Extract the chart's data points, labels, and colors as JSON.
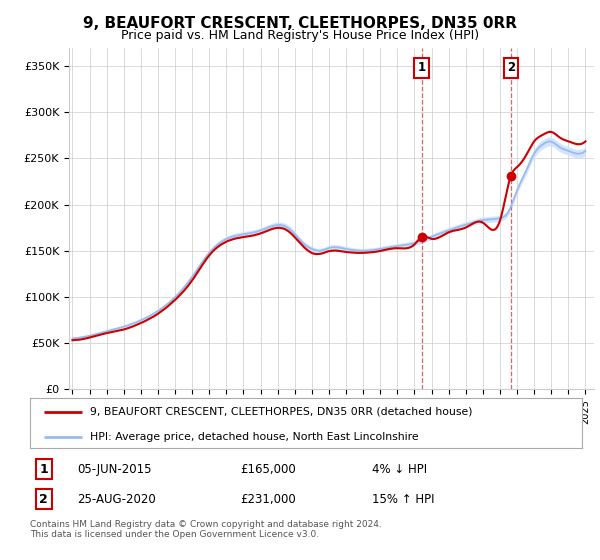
{
  "title": "9, BEAUFORT CRESCENT, CLEETHORPES, DN35 0RR",
  "subtitle": "Price paid vs. HM Land Registry's House Price Index (HPI)",
  "ylabel_ticks": [
    "£0",
    "£50K",
    "£100K",
    "£150K",
    "£200K",
    "£250K",
    "£300K",
    "£350K"
  ],
  "ytick_values": [
    0,
    50000,
    100000,
    150000,
    200000,
    250000,
    300000,
    350000
  ],
  "ylim": [
    0,
    370000
  ],
  "xlim_start": 1994.8,
  "xlim_end": 2025.5,
  "background_color": "#ffffff",
  "grid_color": "#cccccc",
  "property_color": "#cc0000",
  "hpi_color": "#99bbee",
  "hpi_fill_color": "#cce0ff",
  "legend_property": "9, BEAUFORT CRESCENT, CLEETHORPES, DN35 0RR (detached house)",
  "legend_hpi": "HPI: Average price, detached house, North East Lincolnshire",
  "transaction1_date": "05-JUN-2015",
  "transaction1_price": "£165,000",
  "transaction1_change": "4% ↓ HPI",
  "transaction2_date": "25-AUG-2020",
  "transaction2_price": "£231,000",
  "transaction2_change": "15% ↑ HPI",
  "footnote": "Contains HM Land Registry data © Crown copyright and database right 2024.\nThis data is licensed under the Open Government Licence v3.0.",
  "transaction1_x": 2015.42,
  "transaction2_x": 2020.65,
  "transaction1_y": 165000,
  "transaction2_y": 231000
}
